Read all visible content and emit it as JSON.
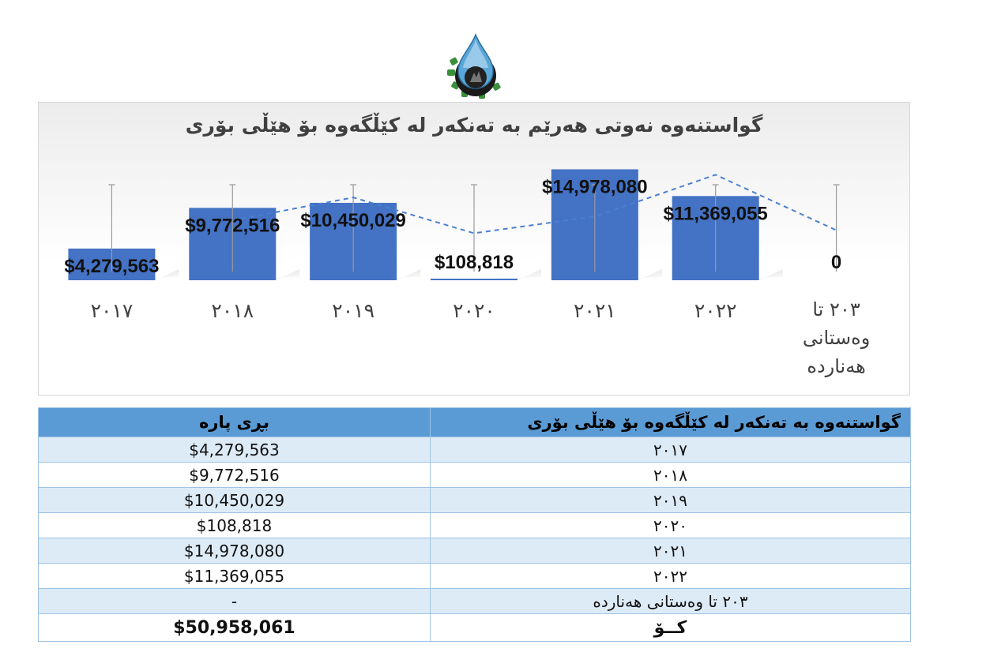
{
  "chart_data": {
    "type": "bar",
    "title": "گواستنەوە نەوتی هەرێم بە تەنکەر  لە کێڵگەوە  بۆ هێڵی  بۆری",
    "categories": [
      "٢٠١٧",
      "٢٠١٨",
      "٢٠١٩",
      "٢٠٢٠",
      "٢٠٢١",
      "٢٠٢٢",
      "٢٠٣ تا وەستانی هەناردە"
    ],
    "values": [
      4279563,
      9772516,
      10450029,
      108818,
      14978080,
      11369055,
      0
    ],
    "data_labels": [
      "$4,279,563",
      "$9,772,516",
      "$10,450,029",
      "$108,818",
      "$14,978,080",
      "$11,369,055",
      "0"
    ],
    "trendline": "dashed",
    "bar_color": "#4472c4",
    "trend_color": "#4a7fd1",
    "ylim": [
      0,
      16000000
    ],
    "grid": false
  },
  "table": {
    "header_label": "گواستنەوە بە تەنکەر  لە کێڵگەوە  بۆ هێڵی  بۆری",
    "header_amount": "بڕی پارە",
    "rows": [
      {
        "label": "٢٠١٧",
        "amount": "$4,279,563"
      },
      {
        "label": "٢٠١٨",
        "amount": "$9,772,516"
      },
      {
        "label": "٢٠١٩",
        "amount": "$10,450,029"
      },
      {
        "label": "٢٠٢٠",
        "amount": "$108,818"
      },
      {
        "label": "٢٠٢١",
        "amount": "$14,978,080"
      },
      {
        "label": "٢٠٢٢",
        "amount": "$11,369,055"
      },
      {
        "label": "٢٠٣ تا وەستانی هەناردە",
        "amount": "-"
      }
    ],
    "total_label": "کــۆ",
    "total_amount": "$50,958,061"
  },
  "colors": {
    "header_bg": "#5b9bd5",
    "band_bg": "#ddebf7",
    "bar": "#4472c4"
  },
  "logo": {
    "icon": "oil-drop-gear-icon"
  }
}
